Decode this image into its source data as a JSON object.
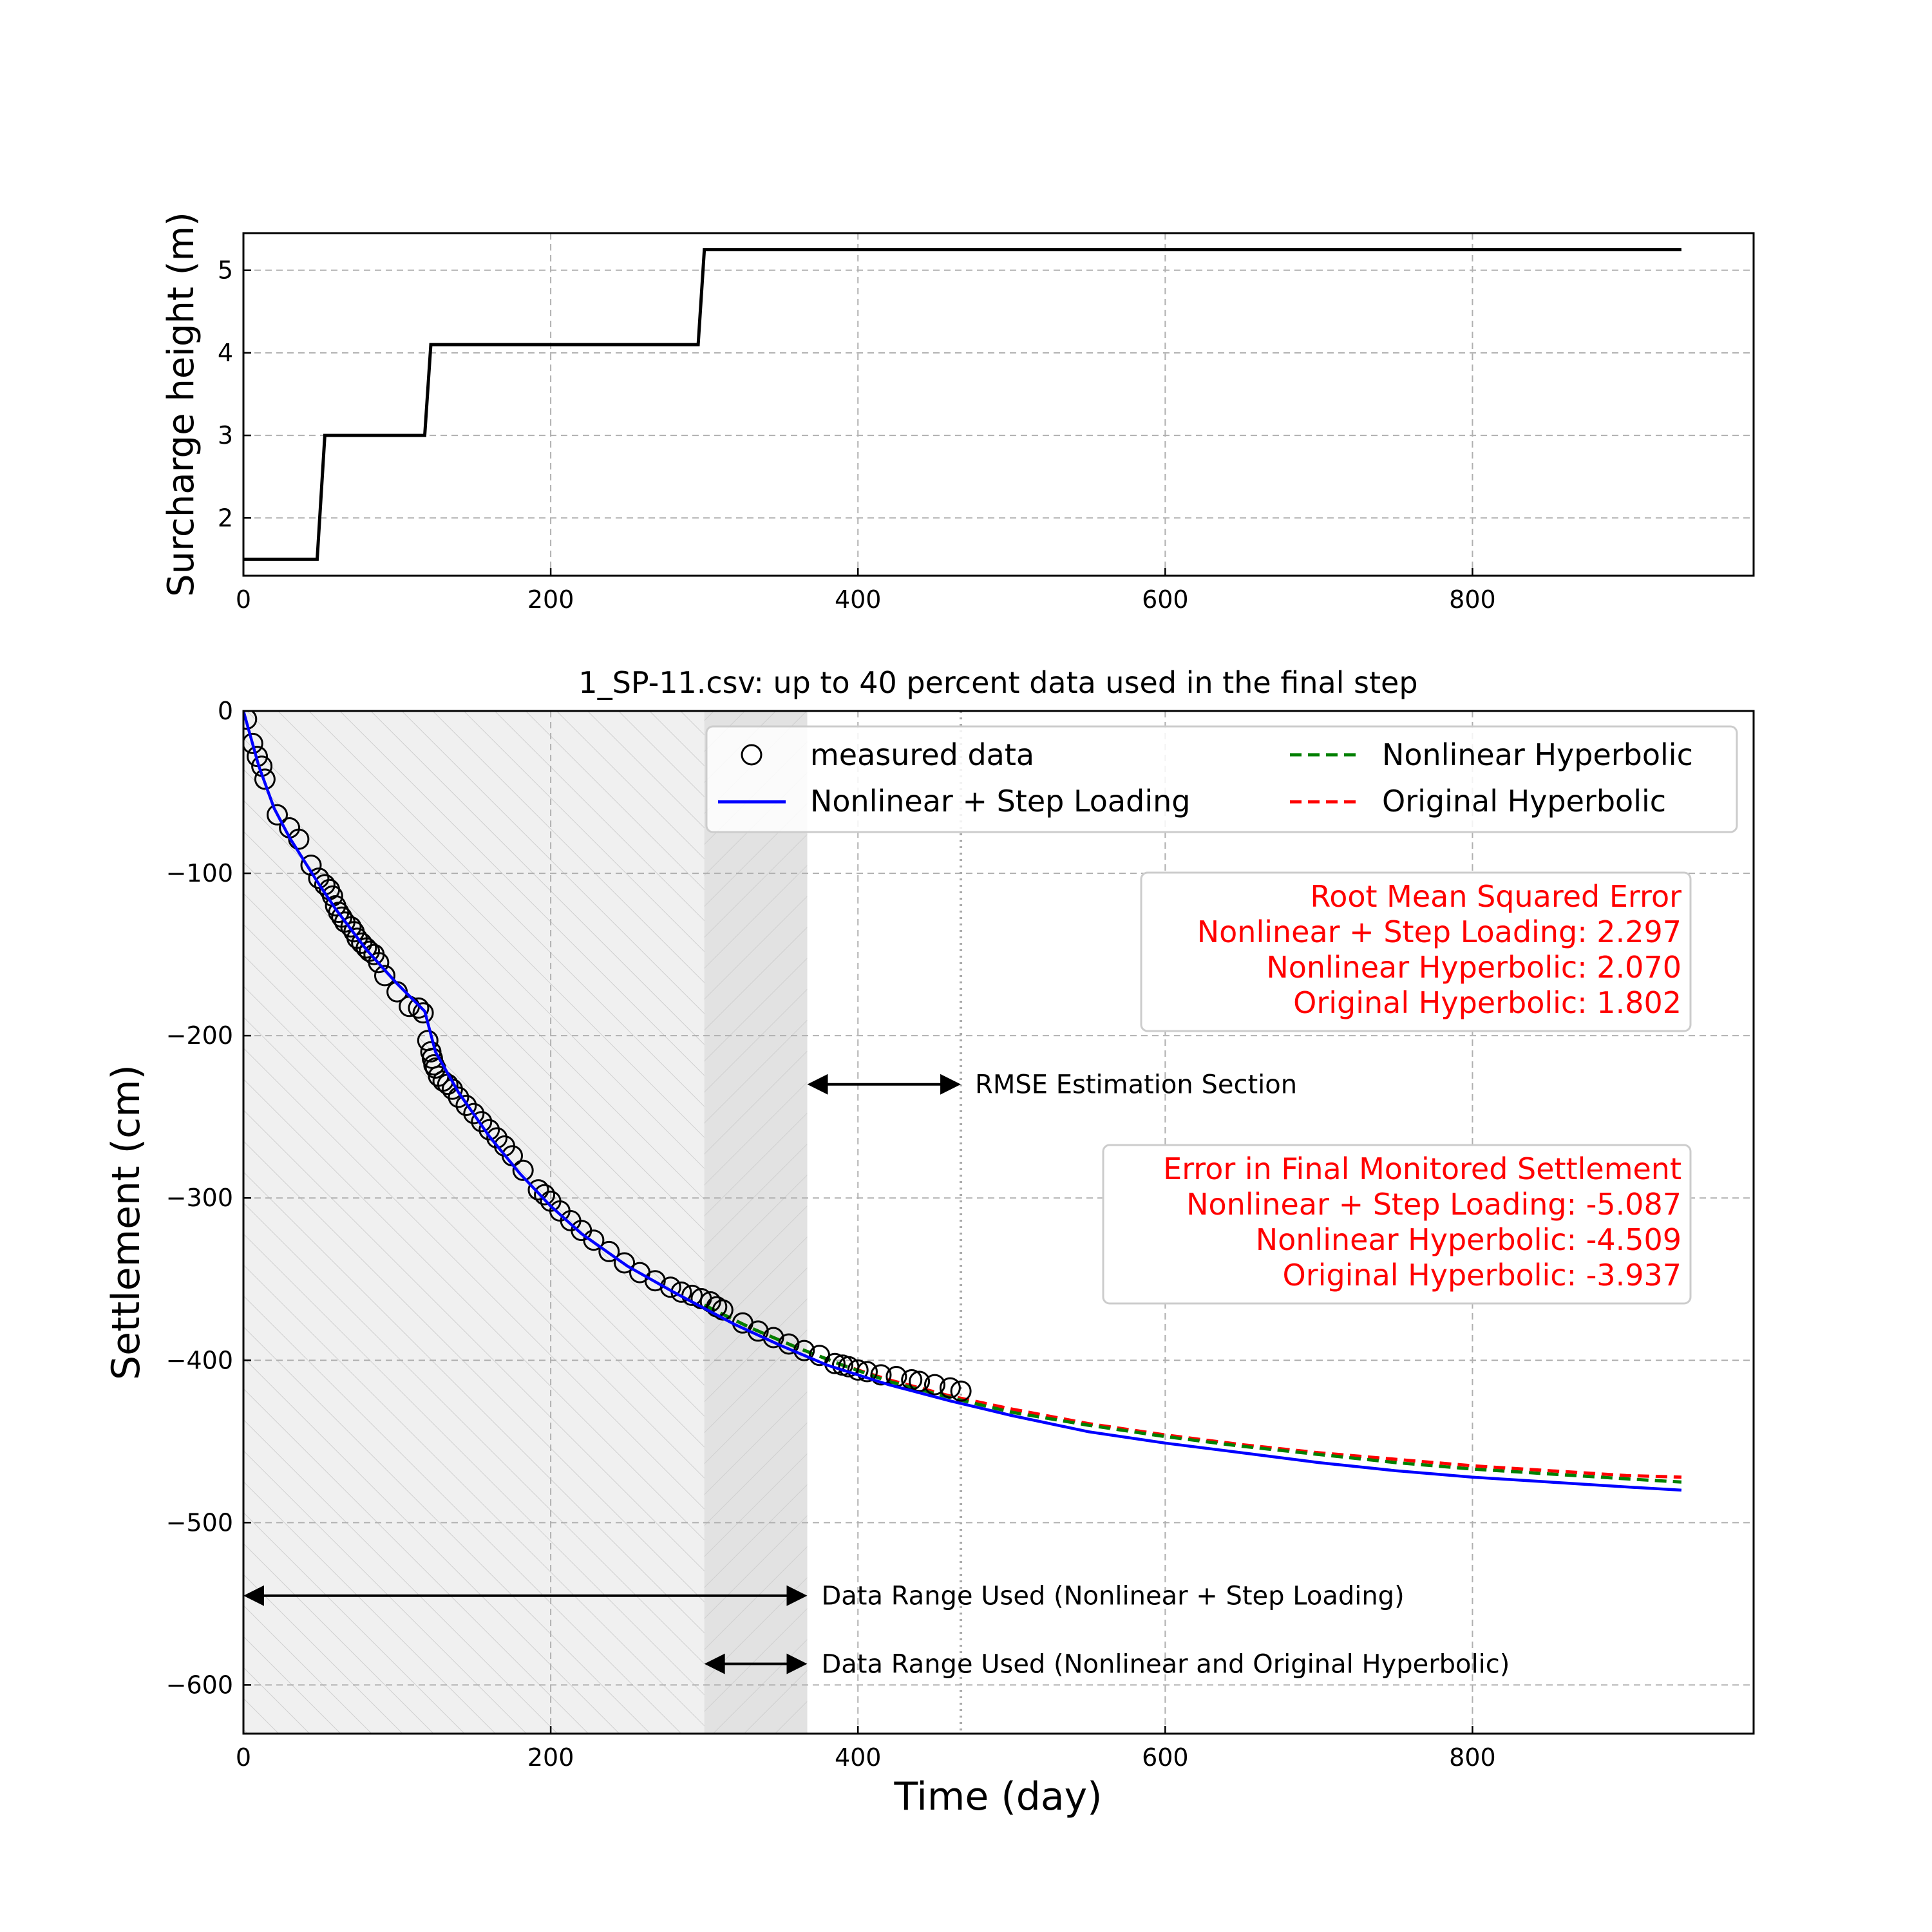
{
  "colors": {
    "measured": "#000000",
    "step_loading": "#0000ff",
    "nonlinear_hyperbolic": "#008000",
    "original_hyperbolic": "#ff0000",
    "annotation_text": "#ff0000",
    "surcharge": "#000000"
  },
  "chart_data": [
    {
      "type": "line",
      "title": "",
      "xlabel": "",
      "ylabel": "Surcharge height (m)",
      "xlim": [
        0,
        983
      ],
      "ylim": [
        1.3,
        5.45
      ],
      "xticks": [
        "0",
        "200",
        "400",
        "600",
        "800"
      ],
      "yticks": [
        "2",
        "3",
        "4",
        "5"
      ],
      "grid": true,
      "series": [
        {
          "name": "",
          "x": [
            0,
            48,
            53,
            118,
            122,
            296,
            300,
            936
          ],
          "y": [
            1.5,
            1.5,
            3.0,
            3.0,
            4.1,
            4.1,
            5.25,
            5.25
          ]
        }
      ]
    },
    {
      "type": "line",
      "title": "1_SP-11.csv: up to 40 percent data used in the final step",
      "xlabel": "Time (day)",
      "ylabel": "Settlement (cm)",
      "xlim": [
        0,
        983
      ],
      "ylim": [
        -630,
        0
      ],
      "xticks": [
        "0",
        "200",
        "400",
        "600",
        "800"
      ],
      "yticks": [
        "0",
        "−100",
        "−200",
        "−300",
        "−400",
        "−500",
        "−600"
      ],
      "grid": true,
      "legend_position": "top-right",
      "legend": [
        "measured data",
        "Nonlinear + Step Loading",
        "Nonlinear Hyperbolic",
        "Original Hyperbolic"
      ],
      "shaded_regions": [
        {
          "label": "Nonlinear + Step Loading fit range",
          "x": [
            0,
            367
          ]
        },
        {
          "label": "Hyperbolic fit range",
          "x": [
            300,
            367
          ]
        }
      ],
      "vertical_line_x": 467,
      "annotations": [
        {
          "label": "RMSE Estimation Section",
          "x_from": 367,
          "x_to": 467,
          "y": -230
        },
        {
          "label": "Data Range Used (Nonlinear + Step Loading)",
          "x_from": 0,
          "x_to": 367,
          "y": -545
        },
        {
          "label": "Data Range Used (Nonlinear and Original Hyperbolic)",
          "x_from": 300,
          "x_to": 367,
          "y": -587
        }
      ],
      "rmse_box": {
        "title": "Root Mean Squared Error",
        "lines": [
          "Nonlinear + Step Loading: 2.297",
          "Nonlinear Hyperbolic: 2.070",
          "Original Hyperbolic: 1.802"
        ]
      },
      "final_error_box": {
        "title": "Error in Final Monitored Settlement",
        "lines": [
          "Nonlinear + Step Loading: -5.087",
          "Nonlinear Hyperbolic: -4.509",
          "Original Hyperbolic: -3.937"
        ]
      },
      "series": [
        {
          "name": "measured data",
          "style": "open-circle",
          "x": [
            2,
            6,
            9,
            12,
            14,
            22,
            30,
            36,
            44,
            49,
            53,
            56,
            58,
            60,
            62,
            64,
            66,
            70,
            72,
            74,
            77,
            80,
            82,
            85,
            88,
            92,
            100,
            108,
            114,
            117,
            120,
            122,
            123,
            124,
            125,
            127,
            130,
            133,
            136,
            140,
            145,
            150,
            155,
            160,
            165,
            170,
            175,
            182,
            192,
            196,
            200,
            206,
            213,
            220,
            228,
            238,
            248,
            258,
            268,
            278,
            285,
            292,
            298,
            304,
            308,
            312,
            325,
            335,
            345,
            355,
            365,
            375,
            385,
            390,
            394,
            400,
            406,
            415,
            425,
            435,
            440,
            450,
            460,
            467
          ],
          "y": [
            -5,
            -20,
            -28,
            -34,
            -42,
            -64,
            -72,
            -79,
            -95,
            -103,
            -107,
            -110,
            -114,
            -120,
            -124,
            -127,
            -130,
            -133,
            -136,
            -140,
            -143,
            -146,
            -148,
            -150,
            -155,
            -163,
            -173,
            -182,
            -183,
            -186,
            -203,
            -210,
            -214,
            -218,
            -220,
            -225,
            -228,
            -230,
            -233,
            -238,
            -243,
            -248,
            -253,
            -258,
            -263,
            -268,
            -274,
            -283,
            -295,
            -298,
            -302,
            -308,
            -314,
            -320,
            -326,
            -333,
            -340,
            -346,
            -351,
            -355,
            -358,
            -360,
            -362,
            -364,
            -367,
            -369,
            -377,
            -382,
            -386,
            -390,
            -394,
            -397,
            -402,
            -403,
            -404,
            -406,
            -407,
            -409,
            -410,
            -412,
            -413,
            -415,
            -417,
            -419
          ]
        },
        {
          "name": "Nonlinear + Step Loading",
          "x": [
            0,
            10,
            20,
            30,
            40,
            48,
            60,
            80,
            100,
            118,
            125,
            140,
            160,
            180,
            200,
            220,
            250,
            280,
            296,
            320,
            350,
            380,
            420,
            460,
            500,
            550,
            600,
            650,
            700,
            750,
            800,
            850,
            900,
            936
          ],
          "y": [
            0,
            -34,
            -60,
            -78,
            -93,
            -105,
            -122,
            -147,
            -168,
            -185,
            -210,
            -235,
            -262,
            -285,
            -305,
            -322,
            -342,
            -358,
            -366,
            -378,
            -391,
            -403,
            -415,
            -425,
            -434,
            -444,
            -451,
            -457,
            -463,
            -468,
            -472,
            -475,
            -478,
            -480
          ]
        },
        {
          "name": "Nonlinear Hyperbolic",
          "x": [
            300,
            330,
            360,
            390,
            420,
            460,
            500,
            550,
            600,
            650,
            700,
            750,
            800,
            850,
            900,
            936
          ],
          "y": [
            -366,
            -380,
            -392,
            -403,
            -413,
            -423,
            -432,
            -440,
            -447,
            -453,
            -458,
            -463,
            -467,
            -470,
            -473,
            -475
          ]
        },
        {
          "name": "Original Hyperbolic",
          "x": [
            300,
            330,
            360,
            390,
            420,
            460,
            500,
            550,
            600,
            650,
            700,
            750,
            800,
            850,
            900,
            936
          ],
          "y": [
            -366,
            -380,
            -392,
            -403,
            -412,
            -422,
            -430,
            -439,
            -446,
            -452,
            -457,
            -461,
            -465,
            -468,
            -471,
            -472
          ]
        }
      ]
    }
  ]
}
